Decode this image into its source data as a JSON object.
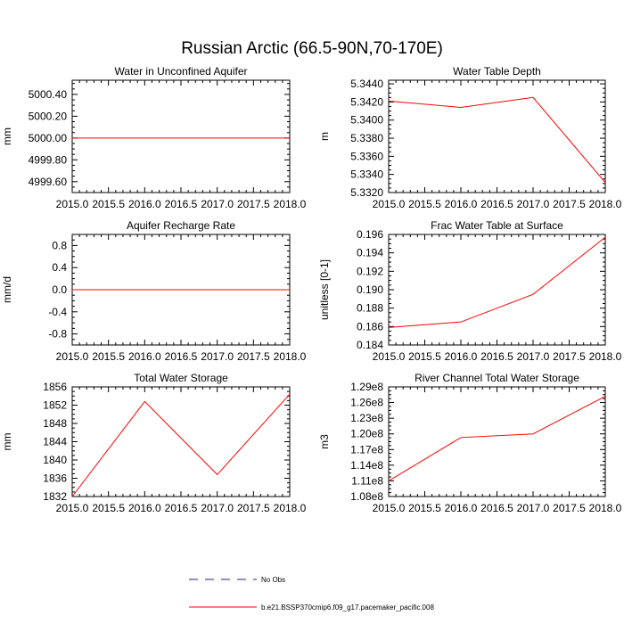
{
  "figure": {
    "title": "Russian Arctic (66.5-90N,70-170E)"
  },
  "legend": {
    "entries": [
      {
        "label": "No Obs",
        "color": "#22227a",
        "dashed": true
      },
      {
        "label": "b.e21.BSSP370cmip6.f09_g17.pacemaker_pacific.008",
        "color": "#ff0000",
        "dashed": false
      }
    ]
  },
  "chart_data": [
    {
      "type": "line",
      "title": "Water in Unconfined Aquifer",
      "ylabel": "mm",
      "xlim": [
        2015.0,
        2018.0
      ],
      "ylim": [
        4999.5,
        5000.53
      ],
      "yticks": [
        4999.6,
        4999.8,
        5000.0,
        5000.2,
        5000.4
      ],
      "ytick_labels": [
        "4999.60",
        "4999.80",
        "5000.00",
        "5000.20",
        "5000.40"
      ],
      "xticks": [
        2015.0,
        2015.5,
        2016.0,
        2016.5,
        2017.0,
        2017.5,
        2018.0
      ],
      "xtick_labels": [
        "2015.0",
        "2015.5",
        "2016.0",
        "2016.5",
        "2017.0",
        "2017.5",
        "2018.0"
      ],
      "series": [
        {
          "color": "#ff0000",
          "x": [
            2015,
            2016,
            2017,
            2018
          ],
          "y": [
            5000.0,
            5000.0,
            5000.0,
            5000.0
          ]
        }
      ]
    },
    {
      "type": "line",
      "title": "Water Table Depth",
      "ylabel": "m",
      "xlim": [
        2015.0,
        2018.0
      ],
      "ylim": [
        5.332,
        5.3444
      ],
      "yticks": [
        5.332,
        5.334,
        5.336,
        5.338,
        5.34,
        5.342,
        5.344
      ],
      "ytick_labels": [
        "5.3320",
        "5.3340",
        "5.3360",
        "5.3380",
        "5.3400",
        "5.3420",
        "5.3440"
      ],
      "xticks": [
        2015.0,
        2015.5,
        2016.0,
        2016.5,
        2017.0,
        2017.5,
        2018.0
      ],
      "xtick_labels": [
        "2015.0",
        "2015.5",
        "2016.0",
        "2016.5",
        "2017.0",
        "2017.5",
        "2018.0"
      ],
      "series": [
        {
          "color": "#ff0000",
          "x": [
            2015,
            2016,
            2017,
            2018
          ],
          "y": [
            5.3421,
            5.3414,
            5.3425,
            5.3331
          ]
        }
      ]
    },
    {
      "type": "line",
      "title": "Aquifer Recharge Rate",
      "ylabel": "mm/d",
      "xlim": [
        2015.0,
        2018.0
      ],
      "ylim": [
        -1.0,
        1.0
      ],
      "yticks": [
        -0.8,
        -0.4,
        0.0,
        0.4,
        0.8
      ],
      "ytick_labels": [
        "-0.8",
        "-0.4",
        "0.0",
        "0.4",
        "0.8"
      ],
      "xticks": [
        2015.0,
        2015.5,
        2016.0,
        2016.5,
        2017.0,
        2017.5,
        2018.0
      ],
      "xtick_labels": [
        "2015.0",
        "2015.5",
        "2016.0",
        "2016.5",
        "2017.0",
        "2017.5",
        "2018.0"
      ],
      "series": [
        {
          "color": "#ff0000",
          "x": [
            2015,
            2016,
            2017,
            2018
          ],
          "y": [
            0.0,
            0.0,
            0.0,
            0.0
          ]
        }
      ]
    },
    {
      "type": "line",
      "title": "Frac Water Table at Surface",
      "ylabel": "unitless [0-1]",
      "xlim": [
        2015.0,
        2018.0
      ],
      "ylim": [
        0.184,
        0.196
      ],
      "yticks": [
        0.184,
        0.186,
        0.188,
        0.19,
        0.192,
        0.194,
        0.196
      ],
      "ytick_labels": [
        "0.184",
        "0.186",
        "0.188",
        "0.190",
        "0.192",
        "0.194",
        "0.196"
      ],
      "xticks": [
        2015.0,
        2015.5,
        2016.0,
        2016.5,
        2017.0,
        2017.5,
        2018.0
      ],
      "xtick_labels": [
        "2015.0",
        "2015.5",
        "2016.0",
        "2016.5",
        "2017.0",
        "2017.5",
        "2018.0"
      ],
      "series": [
        {
          "color": "#ff0000",
          "x": [
            2015,
            2016,
            2017,
            2018
          ],
          "y": [
            0.1859,
            0.1865,
            0.1895,
            0.1957
          ]
        }
      ]
    },
    {
      "type": "line",
      "title": "Total Water Storage",
      "ylabel": "mm",
      "xlim": [
        2015.0,
        2018.0
      ],
      "ylim": [
        1832,
        1856
      ],
      "yticks": [
        1832,
        1836,
        1840,
        1844,
        1848,
        1852,
        1856
      ],
      "ytick_labels": [
        "1832",
        "1836",
        "1840",
        "1844",
        "1848",
        "1852",
        "1856"
      ],
      "xticks": [
        2015.0,
        2015.5,
        2016.0,
        2016.5,
        2017.0,
        2017.5,
        2018.0
      ],
      "xtick_labels": [
        "2015.0",
        "2015.5",
        "2016.0",
        "2016.5",
        "2017.0",
        "2017.5",
        "2018.0"
      ],
      "series": [
        {
          "color": "#ff0000",
          "x": [
            2015,
            2016,
            2017,
            2018
          ],
          "y": [
            1832.0,
            1852.8,
            1836.8,
            1854.4
          ]
        }
      ]
    },
    {
      "type": "line",
      "title": "River Channel Total Water Storage",
      "ylabel": "m3",
      "xlim": [
        2015.0,
        2018.0
      ],
      "ylim": [
        108000000,
        129000000
      ],
      "yticks": [
        108000000,
        111000000,
        114000000,
        117000000,
        120000000,
        123000000,
        126000000,
        129000000
      ],
      "ytick_labels": [
        "1.08e8",
        "1.11e8",
        "1.14e8",
        "1.17e8",
        "1.20e8",
        "1.23e8",
        "1.26e8",
        "1.29e8"
      ],
      "xticks": [
        2015.0,
        2015.5,
        2016.0,
        2016.5,
        2017.0,
        2017.5,
        2018.0
      ],
      "xtick_labels": [
        "2015.0",
        "2015.5",
        "2016.0",
        "2016.5",
        "2017.0",
        "2017.5",
        "2018.0"
      ],
      "series": [
        {
          "color": "#ff0000",
          "x": [
            2015,
            2016,
            2017,
            2018
          ],
          "y": [
            111000000,
            119300000,
            120000000,
            127200000
          ]
        }
      ]
    }
  ]
}
